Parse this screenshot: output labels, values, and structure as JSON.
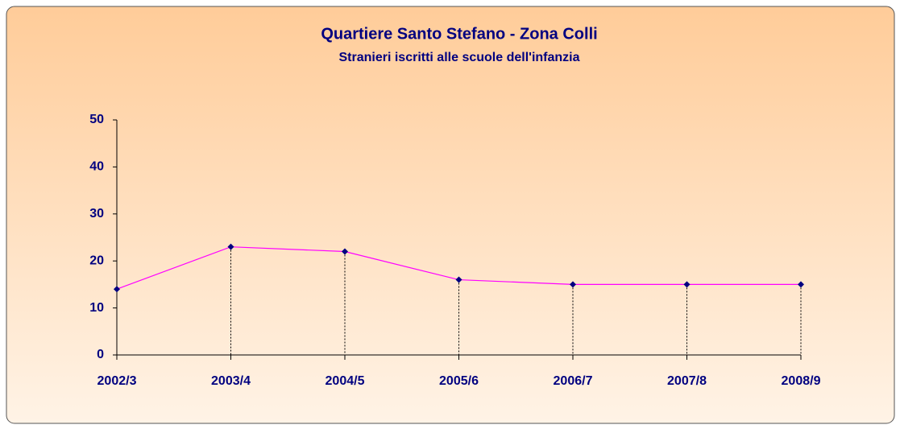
{
  "chart_data": {
    "type": "line",
    "title": "Quartiere Santo Stefano - Zona Colli",
    "subtitle": "Stranieri iscritti alle scuole dell'infanzia",
    "categories": [
      "2002/3",
      "2003/4",
      "2004/5",
      "2005/6",
      "2006/7",
      "2007/8",
      "2008/9"
    ],
    "values": [
      14,
      23,
      22,
      16,
      15,
      15,
      15
    ],
    "color": "#ff00ff",
    "marker_color": "#000080",
    "ylim": [
      0,
      50
    ],
    "yticks": [
      0,
      10,
      20,
      30,
      40,
      50
    ],
    "grid": false,
    "drop_lines": true
  }
}
